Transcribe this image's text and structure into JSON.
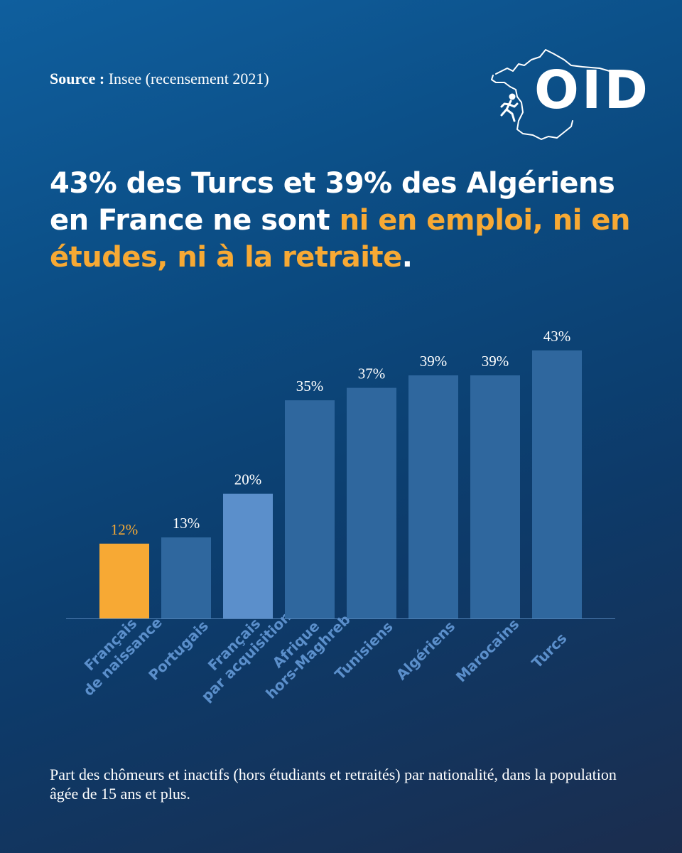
{
  "source": {
    "label": "Source :",
    "text": "Insee (recensement 2021)"
  },
  "logo": {
    "text": "OID"
  },
  "headline": {
    "part1": "43% des Turcs et 39% des Algériens en France ne sont ",
    "highlight": "ni en emploi, ni en études, ni à la retraite",
    "part2": "."
  },
  "caption": "Part des chômeurs et inactifs (hors étudiants et retraités) par nationalité, dans la population âgée de 15 ans et plus.",
  "colors": {
    "highlight_bar": "#f7a934",
    "acquisition_bar": "#5b8fcb",
    "default_bar": "#2f679e",
    "category_label": "#5b8fcb",
    "axis_line": "#4f7fb3"
  },
  "chart_data": {
    "type": "bar",
    "categories": [
      [
        "Français",
        "de naissance"
      ],
      [
        "Portugais"
      ],
      [
        "Français",
        "par acquisition"
      ],
      [
        "Afrique",
        "hors-Maghreb"
      ],
      [
        "Tunisiens"
      ],
      [
        "Algériens"
      ],
      [
        "Marocains"
      ],
      [
        "Turcs"
      ]
    ],
    "values": [
      12,
      13,
      20,
      35,
      37,
      39,
      39,
      43
    ],
    "value_labels": [
      "12%",
      "13%",
      "20%",
      "35%",
      "37%",
      "39%",
      "39%",
      "43%"
    ],
    "bar_color_keys": [
      "highlight_bar",
      "default_bar",
      "acquisition_bar",
      "default_bar",
      "default_bar",
      "default_bar",
      "default_bar",
      "default_bar"
    ],
    "ylim": [
      0,
      43
    ],
    "unit": "%",
    "grid": false,
    "legend": "none"
  }
}
